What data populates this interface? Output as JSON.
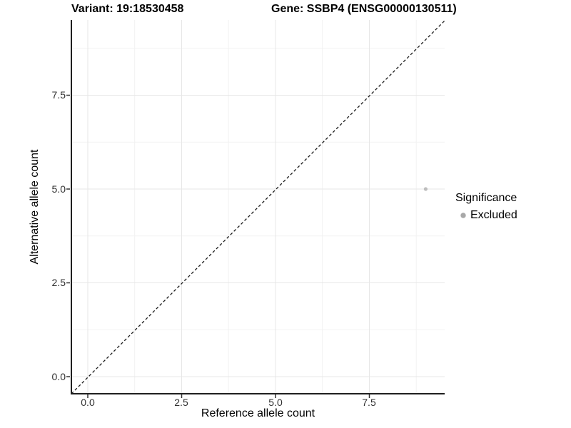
{
  "plot": {
    "title_variant": "Variant: 19:18530458",
    "title_gene": "Gene: SSBP4 (ENSG00000130511)",
    "x_axis_label": "Reference allele count",
    "y_axis_label": "Alternative allele count",
    "legend": {
      "title": "Significance",
      "items": [
        {
          "label": "Excluded",
          "color": "#a8a8a8"
        }
      ]
    }
  },
  "chart_data": {
    "type": "scatter",
    "title": "Variant: 19:18530458   Gene: SSBP4 (ENSG00000130511)",
    "xlabel": "Reference allele count",
    "ylabel": "Alternative allele count",
    "x_ticks": [
      "0.0",
      "2.5",
      "5.0",
      "7.5"
    ],
    "y_ticks": [
      "0.0",
      "2.5",
      "5.0",
      "7.5"
    ],
    "xlim": [
      -0.45,
      9.5
    ],
    "ylim": [
      -0.45,
      9.5
    ],
    "grid": "major+minor",
    "legend_position": "right",
    "legend_title": "Significance",
    "series": [
      {
        "name": "Excluded",
        "color": "#bdbdbd",
        "points": [
          {
            "x": 9,
            "y": 5
          }
        ]
      }
    ],
    "reference_line": {
      "type": "identity",
      "style": "dashed",
      "color": "#1a1a1a",
      "from": [
        -0.45,
        -0.45
      ],
      "to": [
        9.5,
        9.5
      ]
    },
    "colors": {
      "background": "#ffffff",
      "grid_major": "#e7e7e7",
      "grid_minor": "#f2f2f2",
      "axis_line": "#1f1f1f",
      "point": "#bdbdbd",
      "legend_point": "#a8a8a8"
    }
  }
}
